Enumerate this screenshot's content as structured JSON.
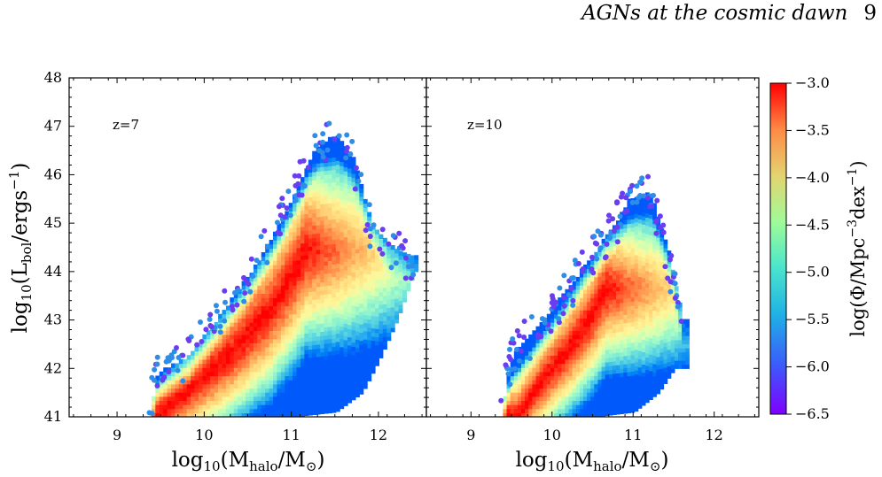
{
  "header": {
    "title": "AGNs at the cosmic dawn",
    "page_number": "9"
  },
  "chart_data": [
    {
      "type": "heatmap",
      "panel_label": "z=7",
      "xlabel_base": "log",
      "xlabel_sub": "10",
      "xlabel_rest": "(M",
      "xlabel_msub": "halo",
      "xlabel_tail": "/M",
      "xlabel_sun": "⊙",
      "xlabel_close": ")",
      "ylabel": "log10(Lbol/ergs−1)",
      "xlim": [
        8.45,
        12.55
      ],
      "ylim": [
        41,
        48
      ],
      "xticks": [
        "9",
        "10",
        "11",
        "12"
      ],
      "yticks": [
        "41",
        "42",
        "43",
        "44",
        "45",
        "46",
        "47",
        "48"
      ],
      "ridge": [
        [
          9.45,
          41.0
        ],
        [
          9.85,
          41.6
        ],
        [
          10.3,
          42.3
        ],
        [
          10.75,
          43.2
        ],
        [
          11.0,
          43.9
        ],
        [
          11.15,
          44.4
        ]
      ],
      "envelope_lower": [
        [
          9.5,
          41.0
        ],
        [
          10.5,
          41.0
        ],
        [
          11.0,
          41.0
        ],
        [
          11.5,
          41.1
        ],
        [
          11.8,
          41.5
        ],
        [
          12.0,
          42.2
        ],
        [
          12.2,
          43.0
        ],
        [
          12.4,
          44.0
        ]
      ],
      "envelope_upper": [
        [
          9.35,
          41.0
        ],
        [
          9.45,
          41.9
        ],
        [
          9.8,
          42.2
        ],
        [
          10.1,
          42.9
        ],
        [
          10.5,
          43.9
        ],
        [
          10.8,
          44.8
        ],
        [
          11.05,
          45.7
        ],
        [
          11.25,
          46.5
        ],
        [
          11.5,
          46.8
        ],
        [
          11.7,
          46.3
        ],
        [
          11.9,
          45.0
        ],
        [
          12.1,
          44.5
        ],
        [
          12.4,
          44.3
        ]
      ],
      "max_logphi": -3.0
    },
    {
      "type": "heatmap",
      "panel_label": "z=10",
      "xlim": [
        8.45,
        12.55
      ],
      "ylim": [
        41,
        48
      ],
      "xticks": [
        "9",
        "10",
        "11",
        "12"
      ],
      "ridge": [
        [
          9.55,
          41.0
        ],
        [
          9.9,
          41.8
        ],
        [
          10.2,
          42.4
        ],
        [
          10.45,
          43.0
        ],
        [
          10.65,
          43.6
        ]
      ],
      "envelope_lower": [
        [
          9.4,
          41.0
        ],
        [
          10.5,
          41.0
        ],
        [
          11.0,
          41.1
        ],
        [
          11.3,
          41.5
        ],
        [
          11.5,
          42.0
        ]
      ],
      "envelope_upper": [
        [
          9.35,
          41.0
        ],
        [
          9.5,
          42.3
        ],
        [
          9.9,
          43.0
        ],
        [
          10.3,
          43.9
        ],
        [
          10.7,
          44.8
        ],
        [
          10.95,
          45.5
        ],
        [
          11.2,
          45.6
        ],
        [
          11.4,
          44.5
        ],
        [
          11.6,
          43.0
        ]
      ],
      "max_logphi": -3.0
    }
  ],
  "colorbar": {
    "label": "log(Φ/Mpc−3dex−1)",
    "range": [
      -6.5,
      -3.0
    ],
    "ticks": [
      "−3.0",
      "−3.5",
      "−4.0",
      "−4.5",
      "−5.0",
      "−5.5",
      "−6.0",
      "−6.5"
    ],
    "colormap": "rainbow"
  }
}
